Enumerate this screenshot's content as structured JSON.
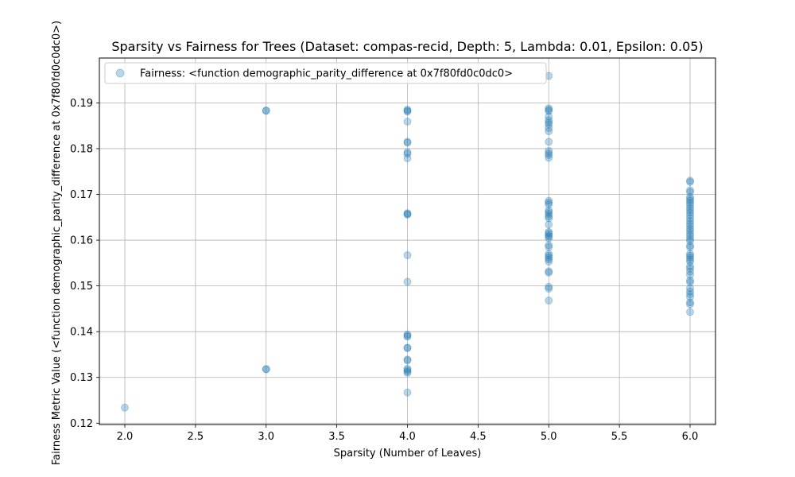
{
  "chart_data": {
    "type": "scatter",
    "title": "Sparsity vs Fairness for Trees (Dataset: compas-recid, Depth: 5, Lambda: 0.01, Epsilon: 0.05)",
    "xlabel": "Sparsity (Number of Leaves)",
    "ylabel": "Fairness Metric Value (<function demographic_parity_difference at 0x7f80fd0c0dc0>)",
    "xlim": [
      1.82,
      6.18
    ],
    "ylim": [
      0.1197,
      0.1998
    ],
    "xticks": [
      2.0,
      2.5,
      3.0,
      3.5,
      4.0,
      4.5,
      5.0,
      5.5,
      6.0
    ],
    "xtick_labels": [
      "2.0",
      "2.5",
      "3.0",
      "3.5",
      "4.0",
      "4.5",
      "5.0",
      "5.5",
      "6.0"
    ],
    "yticks": [
      0.12,
      0.13,
      0.14,
      0.15,
      0.16,
      0.17,
      0.18,
      0.19
    ],
    "ytick_labels": [
      "0.12",
      "0.13",
      "0.14",
      "0.15",
      "0.16",
      "0.17",
      "0.18",
      "0.19"
    ],
    "grid": true,
    "legend_position": "top-left",
    "color": "#1f77b4",
    "series": [
      {
        "name": "Fairness: <function demographic_parity_difference at 0x7f80fd0c0dc0>",
        "points": [
          {
            "x": 2.0,
            "y": 0.1234
          },
          {
            "x": 3.0,
            "y": 0.1883
          },
          {
            "x": 3.0,
            "y": 0.1883
          },
          {
            "x": 3.0,
            "y": 0.1318
          },
          {
            "x": 3.0,
            "y": 0.1318
          },
          {
            "x": 4.0,
            "y": 0.1885
          },
          {
            "x": 4.0,
            "y": 0.1883
          },
          {
            "x": 4.0,
            "y": 0.1881
          },
          {
            "x": 4.0,
            "y": 0.1859
          },
          {
            "x": 4.0,
            "y": 0.1815
          },
          {
            "x": 4.0,
            "y": 0.1813
          },
          {
            "x": 4.0,
            "y": 0.1792
          },
          {
            "x": 4.0,
            "y": 0.1789
          },
          {
            "x": 4.0,
            "y": 0.1779
          },
          {
            "x": 4.0,
            "y": 0.1659
          },
          {
            "x": 4.0,
            "y": 0.1657
          },
          {
            "x": 4.0,
            "y": 0.1656
          },
          {
            "x": 4.0,
            "y": 0.1567
          },
          {
            "x": 4.0,
            "y": 0.1509
          },
          {
            "x": 4.0,
            "y": 0.1394
          },
          {
            "x": 4.0,
            "y": 0.1391
          },
          {
            "x": 4.0,
            "y": 0.1389
          },
          {
            "x": 4.0,
            "y": 0.1365
          },
          {
            "x": 4.0,
            "y": 0.1364
          },
          {
            "x": 4.0,
            "y": 0.1339
          },
          {
            "x": 4.0,
            "y": 0.1337
          },
          {
            "x": 4.0,
            "y": 0.1319
          },
          {
            "x": 4.0,
            "y": 0.1316
          },
          {
            "x": 4.0,
            "y": 0.1313
          },
          {
            "x": 4.0,
            "y": 0.131
          },
          {
            "x": 4.0,
            "y": 0.1267
          },
          {
            "x": 5.0,
            "y": 0.1959
          },
          {
            "x": 5.0,
            "y": 0.1888
          },
          {
            "x": 5.0,
            "y": 0.1885
          },
          {
            "x": 5.0,
            "y": 0.1882
          },
          {
            "x": 5.0,
            "y": 0.187
          },
          {
            "x": 5.0,
            "y": 0.1862
          },
          {
            "x": 5.0,
            "y": 0.1857
          },
          {
            "x": 5.0,
            "y": 0.1853
          },
          {
            "x": 5.0,
            "y": 0.1845
          },
          {
            "x": 5.0,
            "y": 0.1838
          },
          {
            "x": 5.0,
            "y": 0.1815
          },
          {
            "x": 5.0,
            "y": 0.1795
          },
          {
            "x": 5.0,
            "y": 0.179
          },
          {
            "x": 5.0,
            "y": 0.1786
          },
          {
            "x": 5.0,
            "y": 0.178
          },
          {
            "x": 5.0,
            "y": 0.1686
          },
          {
            "x": 5.0,
            "y": 0.1682
          },
          {
            "x": 5.0,
            "y": 0.1678
          },
          {
            "x": 5.0,
            "y": 0.1665
          },
          {
            "x": 5.0,
            "y": 0.1661
          },
          {
            "x": 5.0,
            "y": 0.1657
          },
          {
            "x": 5.0,
            "y": 0.1652
          },
          {
            "x": 5.0,
            "y": 0.1648
          },
          {
            "x": 5.0,
            "y": 0.1634
          },
          {
            "x": 5.0,
            "y": 0.1618
          },
          {
            "x": 5.0,
            "y": 0.1615
          },
          {
            "x": 5.0,
            "y": 0.1611
          },
          {
            "x": 5.0,
            "y": 0.1608
          },
          {
            "x": 5.0,
            "y": 0.1604
          },
          {
            "x": 5.0,
            "y": 0.1589
          },
          {
            "x": 5.0,
            "y": 0.1585
          },
          {
            "x": 5.0,
            "y": 0.157
          },
          {
            "x": 5.0,
            "y": 0.1566
          },
          {
            "x": 5.0,
            "y": 0.1562
          },
          {
            "x": 5.0,
            "y": 0.1558
          },
          {
            "x": 5.0,
            "y": 0.1553
          },
          {
            "x": 5.0,
            "y": 0.1532
          },
          {
            "x": 5.0,
            "y": 0.1529
          },
          {
            "x": 5.0,
            "y": 0.1498
          },
          {
            "x": 5.0,
            "y": 0.1494
          },
          {
            "x": 5.0,
            "y": 0.1468
          },
          {
            "x": 6.0,
            "y": 0.173
          },
          {
            "x": 6.0,
            "y": 0.1727
          },
          {
            "x": 6.0,
            "y": 0.1709
          },
          {
            "x": 6.0,
            "y": 0.1705
          },
          {
            "x": 6.0,
            "y": 0.1694
          },
          {
            "x": 6.0,
            "y": 0.169
          },
          {
            "x": 6.0,
            "y": 0.1686
          },
          {
            "x": 6.0,
            "y": 0.1681
          },
          {
            "x": 6.0,
            "y": 0.1676
          },
          {
            "x": 6.0,
            "y": 0.167
          },
          {
            "x": 6.0,
            "y": 0.1665
          },
          {
            "x": 6.0,
            "y": 0.166
          },
          {
            "x": 6.0,
            "y": 0.1654
          },
          {
            "x": 6.0,
            "y": 0.1648
          },
          {
            "x": 6.0,
            "y": 0.1642
          },
          {
            "x": 6.0,
            "y": 0.1636
          },
          {
            "x": 6.0,
            "y": 0.1631
          },
          {
            "x": 6.0,
            "y": 0.1625
          },
          {
            "x": 6.0,
            "y": 0.162
          },
          {
            "x": 6.0,
            "y": 0.1614
          },
          {
            "x": 6.0,
            "y": 0.1609
          },
          {
            "x": 6.0,
            "y": 0.1603
          },
          {
            "x": 6.0,
            "y": 0.1598
          },
          {
            "x": 6.0,
            "y": 0.1588
          },
          {
            "x": 6.0,
            "y": 0.1584
          },
          {
            "x": 6.0,
            "y": 0.157
          },
          {
            "x": 6.0,
            "y": 0.1566
          },
          {
            "x": 6.0,
            "y": 0.1562
          },
          {
            "x": 6.0,
            "y": 0.1557
          },
          {
            "x": 6.0,
            "y": 0.1553
          },
          {
            "x": 6.0,
            "y": 0.1543
          },
          {
            "x": 6.0,
            "y": 0.1538
          },
          {
            "x": 6.0,
            "y": 0.1531
          },
          {
            "x": 6.0,
            "y": 0.1524
          },
          {
            "x": 6.0,
            "y": 0.1512
          },
          {
            "x": 6.0,
            "y": 0.1508
          },
          {
            "x": 6.0,
            "y": 0.1495
          },
          {
            "x": 6.0,
            "y": 0.1488
          },
          {
            "x": 6.0,
            "y": 0.1482
          },
          {
            "x": 6.0,
            "y": 0.1476
          },
          {
            "x": 6.0,
            "y": 0.1464
          },
          {
            "x": 6.0,
            "y": 0.146
          },
          {
            "x": 6.0,
            "y": 0.1443
          }
        ]
      }
    ]
  }
}
